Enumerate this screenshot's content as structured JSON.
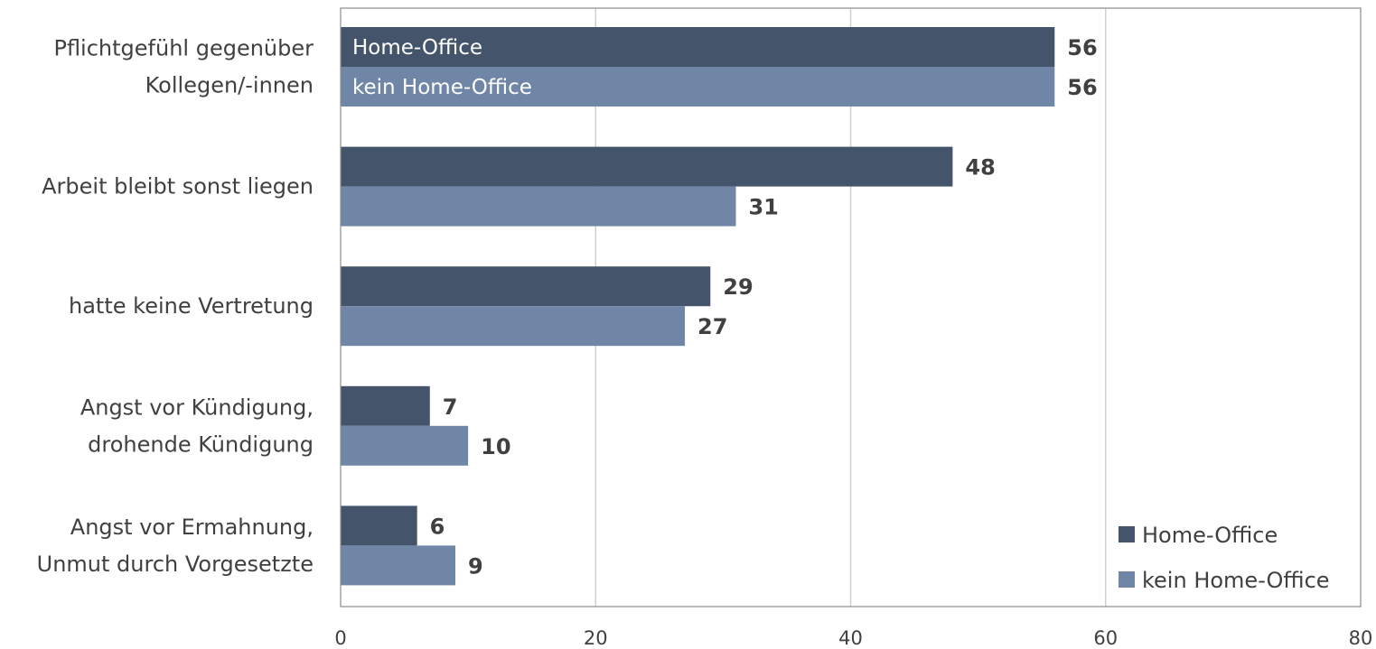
{
  "chart_data": {
    "type": "bar",
    "orientation": "horizontal",
    "categories": [
      [
        "Pflichtgefühl gegenüber",
        "Kollegen/-innen"
      ],
      [
        "Arbeit bleibt sonst liegen"
      ],
      [
        "hatte keine Vertretung"
      ],
      [
        "Angst vor Kündigung,",
        "drohende Kündigung"
      ],
      [
        "Angst vor Ermahnung,",
        "Unmut durch Vorgesetzte"
      ]
    ],
    "series": [
      {
        "name": "Home-Office",
        "color": "#44546a",
        "values": [
          56,
          48,
          29,
          7,
          6
        ]
      },
      {
        "name": "kein Home-Office",
        "color": "#6f86a6",
        "values": [
          56,
          31,
          27,
          10,
          9
        ]
      }
    ],
    "in_bar_labels": [
      "Home-Office",
      "kein Home-Office"
    ],
    "xlim": [
      0,
      80
    ],
    "xticks": [
      0,
      20,
      40,
      60,
      80
    ],
    "grid": true,
    "legend": {
      "position": "bottom-right",
      "entries": [
        "Home-Office",
        "kein Home-Office"
      ]
    },
    "title": "",
    "xlabel": "",
    "ylabel": ""
  }
}
